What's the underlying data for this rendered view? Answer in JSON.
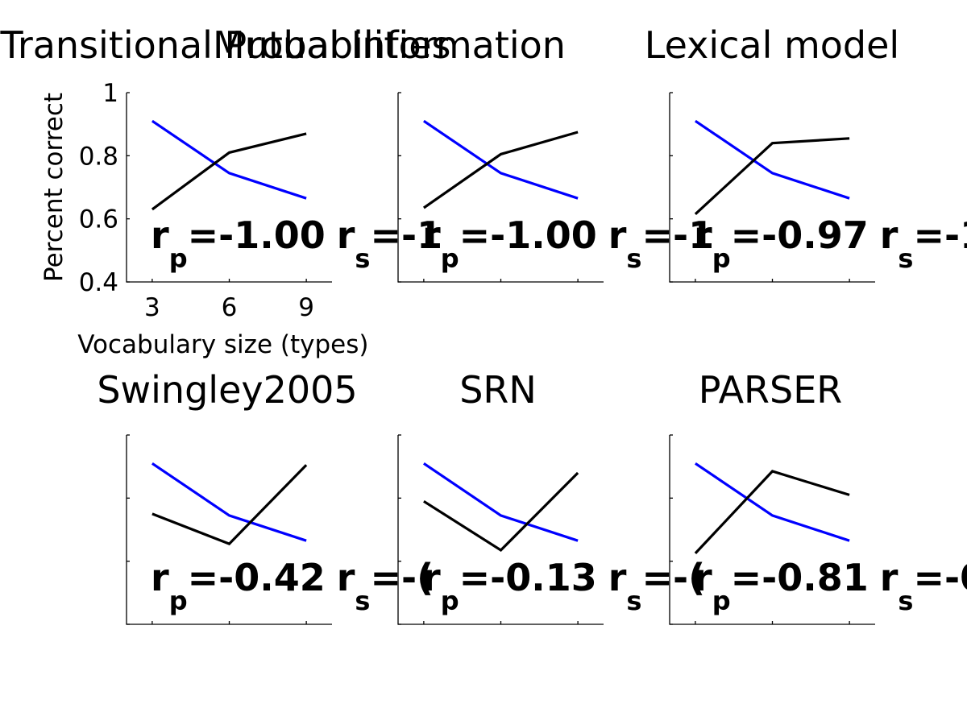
{
  "chart_data": [
    {
      "type": "line",
      "title": "Transitional Probabilities",
      "xlabel": "Vocabulary size (types)",
      "ylabel": "Percent correct",
      "x": [
        3,
        6,
        9
      ],
      "xlim": [
        2,
        10
      ],
      "ylim": [
        0.4,
        1.0
      ],
      "xticks": [
        "3",
        "6",
        "9"
      ],
      "yticks": [
        "0.4",
        "0.6",
        "0.8",
        "1"
      ],
      "series": [
        {
          "color": "#0000ff",
          "values": [
            0.91,
            0.745,
            0.665
          ]
        },
        {
          "color": "#000000",
          "values": [
            0.63,
            0.81,
            0.87
          ]
        }
      ],
      "annotation": {
        "rp": "=-1.00",
        "rs": "=-1"
      }
    },
    {
      "type": "line",
      "title": "Mutual Information",
      "x": [
        3,
        6,
        9
      ],
      "xlim": [
        2,
        10
      ],
      "ylim": [
        0.4,
        1.0
      ],
      "series": [
        {
          "color": "#0000ff",
          "values": [
            0.91,
            0.745,
            0.665
          ]
        },
        {
          "color": "#000000",
          "values": [
            0.635,
            0.805,
            0.875
          ]
        }
      ],
      "annotation": {
        "rp": "=-1.00",
        "rs": "=-1"
      }
    },
    {
      "type": "line",
      "title": "Lexical model",
      "x": [
        3,
        6,
        9
      ],
      "xlim": [
        2,
        10
      ],
      "ylim": [
        0.4,
        1.0
      ],
      "series": [
        {
          "color": "#0000ff",
          "values": [
            0.91,
            0.745,
            0.665
          ]
        },
        {
          "color": "#000000",
          "values": [
            0.615,
            0.84,
            0.855
          ]
        }
      ],
      "annotation": {
        "rp": "=-0.97",
        "rs": "=-1."
      }
    },
    {
      "type": "line",
      "title": "Swingley2005",
      "x": [
        3,
        6,
        9
      ],
      "xlim": [
        2,
        10
      ],
      "ylim": [
        0.4,
        1.0
      ],
      "series": [
        {
          "color": "#0000ff",
          "values": [
            0.91,
            0.745,
            0.665
          ]
        },
        {
          "color": "#000000",
          "values": [
            0.75,
            0.655,
            0.905
          ]
        }
      ],
      "annotation": {
        "rp": "=-0.42",
        "rs": "=-("
      }
    },
    {
      "type": "line",
      "title": "SRN",
      "x": [
        3,
        6,
        9
      ],
      "xlim": [
        2,
        10
      ],
      "ylim": [
        0.4,
        1.0
      ],
      "series": [
        {
          "color": "#0000ff",
          "values": [
            0.91,
            0.745,
            0.665
          ]
        },
        {
          "color": "#000000",
          "values": [
            0.79,
            0.635,
            0.88
          ]
        }
      ],
      "annotation": {
        "rp": "=-0.13",
        "rs": "=-("
      }
    },
    {
      "type": "line",
      "title": "PARSER",
      "x": [
        3,
        6,
        9
      ],
      "xlim": [
        2,
        10
      ],
      "ylim": [
        0.4,
        1.0
      ],
      "series": [
        {
          "color": "#0000ff",
          "values": [
            0.91,
            0.745,
            0.665
          ]
        },
        {
          "color": "#000000",
          "values": [
            0.625,
            0.885,
            0.81
          ]
        }
      ],
      "annotation": {
        "rp": "=-0.81",
        "rs": "=-0."
      }
    }
  ]
}
